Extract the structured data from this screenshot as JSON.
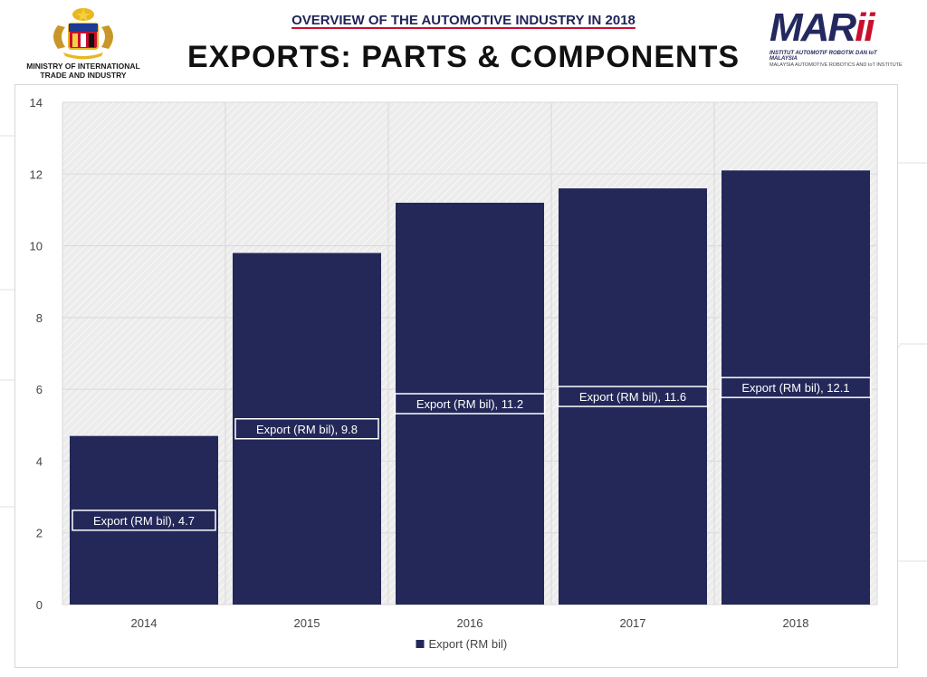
{
  "header": {
    "subtitle": "OVERVIEW OF THE AUTOMOTIVE INDUSTRY IN 2018",
    "title": "EXPORTS: PARTS & COMPONENTS"
  },
  "ministry": {
    "label_line1": "MINISTRY OF INTERNATIONAL",
    "label_line2": "TRADE AND INDUSTRY"
  },
  "marii": {
    "wordmark": "MARii",
    "tagline1": "INSTITUT AUTOMOTIF ROBOTIK DAN IoT MALAYSIA",
    "tagline2": "MALAYSIA AUTOMOTIVE ROBOTICS AND IoT INSTITUTE"
  },
  "colors": {
    "bar": "#232859",
    "grid": "#d9d9d9",
    "plot_bg": "#ececec",
    "axis_text": "#444444"
  },
  "chart_data": {
    "type": "bar",
    "title": "EXPORTS: PARTS & COMPONENTS",
    "categories": [
      "2014",
      "2015",
      "2016",
      "2017",
      "2018"
    ],
    "series": [
      {
        "name": "Export (RM bil)",
        "values": [
          4.7,
          9.8,
          11.2,
          11.6,
          12.1
        ],
        "data_labels": [
          "Export (RM bil), 4.7",
          "Export (RM bil), 9.8",
          "Export (RM bil), 11.2",
          "Export (RM bil), 11.6",
          "Export (RM bil), 12.1"
        ]
      }
    ],
    "ylim": [
      0,
      14
    ],
    "yticks": [
      0,
      2,
      4,
      6,
      8,
      10,
      12,
      14
    ],
    "xlabel": "",
    "ylabel": "",
    "grid": true,
    "legend": "bottom-center"
  }
}
